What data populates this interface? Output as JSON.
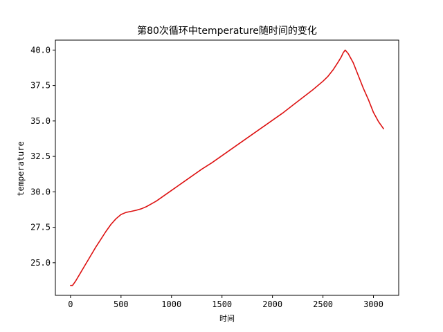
{
  "chart_data": {
    "type": "line",
    "title": "第80次循环中temperature随时间的变化",
    "xlabel": "时间",
    "ylabel": "temperature",
    "xlim": [
      -150,
      3250
    ],
    "ylim": [
      22.7,
      40.7
    ],
    "xticks": [
      0,
      500,
      1000,
      1500,
      2000,
      2500,
      3000
    ],
    "yticks": [
      25.0,
      27.5,
      30.0,
      32.5,
      35.0,
      37.5,
      40.0
    ],
    "xtick_labels": [
      "0",
      "500",
      "1000",
      "1500",
      "2000",
      "2500",
      "3000"
    ],
    "ytick_labels": [
      "25.0",
      "27.5",
      "30.0",
      "32.5",
      "35.0",
      "37.5",
      "40.0"
    ],
    "grid": false,
    "series": [
      {
        "color": "#dd1111",
        "x": [
          0,
          20,
          50,
          100,
          150,
          200,
          250,
          300,
          350,
          400,
          450,
          500,
          550,
          600,
          650,
          700,
          750,
          800,
          850,
          900,
          1000,
          1100,
          1200,
          1300,
          1400,
          1500,
          1600,
          1700,
          1800,
          1900,
          2000,
          2100,
          2200,
          2300,
          2400,
          2500,
          2550,
          2600,
          2650,
          2680,
          2700,
          2720,
          2750,
          2800,
          2850,
          2900,
          2950,
          3000,
          3050,
          3080,
          3100
        ],
        "y": [
          23.4,
          23.4,
          23.7,
          24.3,
          24.9,
          25.5,
          26.1,
          26.65,
          27.2,
          27.7,
          28.1,
          28.4,
          28.55,
          28.62,
          28.7,
          28.8,
          28.95,
          29.15,
          29.35,
          29.6,
          30.1,
          30.6,
          31.1,
          31.6,
          32.05,
          32.55,
          33.05,
          33.55,
          34.05,
          34.55,
          35.05,
          35.55,
          36.1,
          36.65,
          37.2,
          37.8,
          38.15,
          38.6,
          39.15,
          39.5,
          39.8,
          40.0,
          39.75,
          39.1,
          38.2,
          37.3,
          36.5,
          35.6,
          34.95,
          34.65,
          34.45
        ]
      }
    ]
  }
}
